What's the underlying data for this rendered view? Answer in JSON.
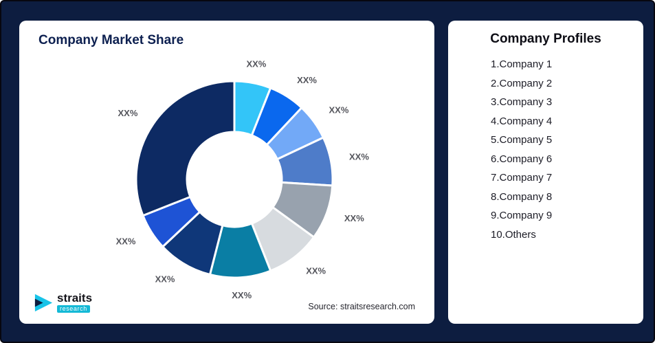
{
  "page": {
    "background_color": "#0D1D40"
  },
  "chart_card": {
    "title": "Company Market Share",
    "source": "Source: straitsresearch.com"
  },
  "logo": {
    "name": "straits",
    "sub": "research",
    "accent_color": "#17C3E8"
  },
  "profiles_card": {
    "title": "Company Profiles",
    "items": [
      "1.Company 1",
      "2.Company 2",
      "3.Company 3",
      "4.Company 4",
      "5.Company 5",
      "6.Company 6",
      "7.Company 7",
      "8.Company 8",
      "9.Company 9",
      "10.Others"
    ]
  },
  "chart_data": {
    "type": "pie",
    "subtype": "donut",
    "title": "Company Market Share",
    "labels": [
      "Company 1",
      "Company 2",
      "Company 3",
      "Company 4",
      "Company 5",
      "Company 6",
      "Company 7",
      "Company 8",
      "Company 9",
      "Others"
    ],
    "values": [
      6,
      6,
      6,
      8,
      9,
      9,
      10,
      9,
      6,
      31
    ],
    "displayed_slice_label": "XX%",
    "colors": [
      "#33C5F8",
      "#0A68EE",
      "#72A9F7",
      "#4E7CC9",
      "#98A2AE",
      "#D7DBDF",
      "#0A7EA4",
      "#0F3779",
      "#1E53D5",
      "#0D2A63"
    ],
    "start_angle_deg": 0,
    "direction": "clockwise",
    "inner_radius_ratio": 0.48,
    "legend_position": "none",
    "note": "All slices display placeholder label XX%; values estimated from arc angles"
  }
}
